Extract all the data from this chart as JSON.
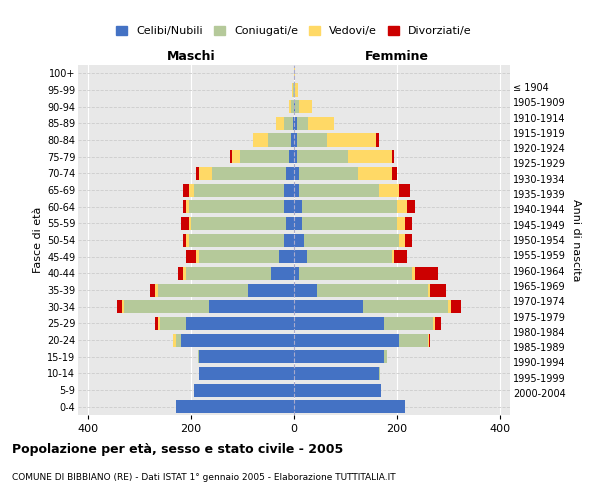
{
  "age_groups": [
    "0-4",
    "5-9",
    "10-14",
    "15-19",
    "20-24",
    "25-29",
    "30-34",
    "35-39",
    "40-44",
    "45-49",
    "50-54",
    "55-59",
    "60-64",
    "65-69",
    "70-74",
    "75-79",
    "80-84",
    "85-89",
    "90-94",
    "95-99",
    "100+"
  ],
  "birth_years": [
    "2000-2004",
    "1995-1999",
    "1990-1994",
    "1985-1989",
    "1980-1984",
    "1975-1979",
    "1970-1974",
    "1965-1969",
    "1960-1964",
    "1955-1959",
    "1950-1954",
    "1945-1949",
    "1940-1944",
    "1935-1939",
    "1930-1934",
    "1925-1929",
    "1920-1924",
    "1915-1919",
    "1910-1914",
    "1905-1909",
    "≤ 1904"
  ],
  "male": {
    "celibi": [
      230,
      195,
      185,
      185,
      220,
      210,
      165,
      90,
      45,
      30,
      20,
      15,
      20,
      20,
      15,
      10,
      5,
      2,
      0,
      0,
      0
    ],
    "coniugati": [
      0,
      0,
      0,
      2,
      10,
      50,
      165,
      175,
      165,
      155,
      185,
      185,
      185,
      175,
      145,
      95,
      45,
      18,
      5,
      2,
      0
    ],
    "vedovi": [
      0,
      0,
      0,
      0,
      5,
      5,
      5,
      5,
      5,
      5,
      5,
      5,
      5,
      10,
      25,
      15,
      30,
      15,
      5,
      2,
      0
    ],
    "divorziati": [
      0,
      0,
      0,
      0,
      0,
      5,
      10,
      10,
      10,
      20,
      5,
      15,
      5,
      10,
      5,
      5,
      0,
      0,
      0,
      0,
      0
    ]
  },
  "female": {
    "nubili": [
      215,
      170,
      165,
      175,
      205,
      175,
      135,
      45,
      10,
      25,
      20,
      15,
      15,
      10,
      10,
      5,
      5,
      5,
      2,
      0,
      0
    ],
    "coniugate": [
      0,
      0,
      2,
      5,
      55,
      95,
      165,
      215,
      220,
      165,
      185,
      185,
      185,
      155,
      115,
      100,
      60,
      22,
      8,
      2,
      0
    ],
    "vedove": [
      0,
      0,
      0,
      0,
      2,
      5,
      5,
      5,
      5,
      5,
      10,
      15,
      20,
      40,
      65,
      85,
      95,
      50,
      25,
      5,
      2
    ],
    "divorziate": [
      0,
      0,
      0,
      0,
      2,
      10,
      20,
      30,
      45,
      25,
      15,
      15,
      15,
      20,
      10,
      5,
      5,
      0,
      0,
      0,
      0
    ]
  },
  "colors": {
    "celibi": "#4472c4",
    "coniugati": "#b5c99a",
    "vedovi": "#ffd966",
    "divorziati": "#cc0000"
  },
  "title": "Popolazione per età, sesso e stato civile - 2005",
  "subtitle": "COMUNE DI BIBBIANO (RE) - Dati ISTAT 1° gennaio 2005 - Elaborazione TUTTITALIA.IT",
  "xlabel_left": "Maschi",
  "xlabel_right": "Femmine",
  "ylabel_left": "Fasce di età",
  "ylabel_right": "Anni di nascita",
  "xlim": 420,
  "background_color": "#ffffff",
  "plot_background": "#e8e8e8",
  "legend_labels": [
    "Celibi/Nubili",
    "Coniugati/e",
    "Vedovi/e",
    "Divorziati/e"
  ]
}
